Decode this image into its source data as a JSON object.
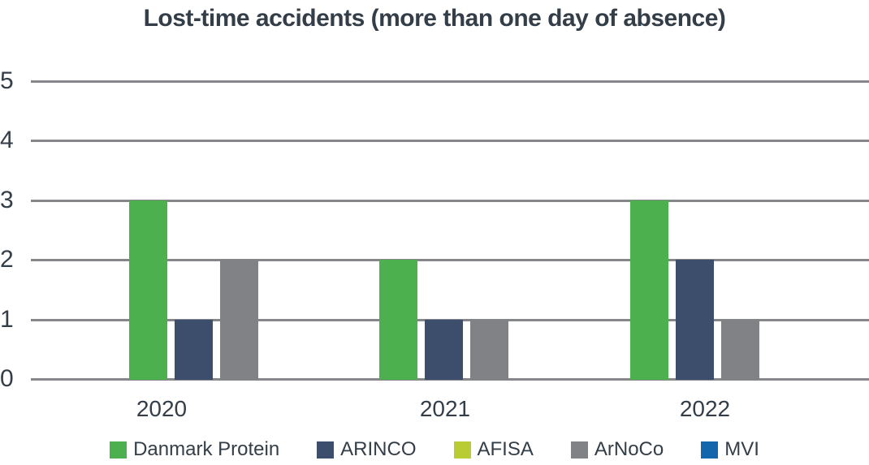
{
  "title": "Lost-time accidents (more than one day of absence)",
  "chart_data": {
    "type": "bar",
    "title": "Lost-time accidents (more than one day of absence)",
    "categories": [
      "2020",
      "2021",
      "2022"
    ],
    "series": [
      {
        "name": "Danmark Protein",
        "color": "#4cb04e",
        "values": [
          3,
          2,
          3
        ]
      },
      {
        "name": "ARINCO",
        "color": "#3c4e6b",
        "values": [
          1,
          1,
          2
        ]
      },
      {
        "name": "AFISA",
        "color": "#b9cc33",
        "values": [
          0,
          0,
          0
        ]
      },
      {
        "name": "ArNoCo",
        "color": "#808285",
        "values": [
          2,
          1,
          1
        ]
      },
      {
        "name": "MVI",
        "color": "#1466ac",
        "values": [
          0,
          0,
          0
        ]
      }
    ],
    "ylim": [
      0,
      5
    ],
    "yticks": [
      0,
      1,
      2,
      3,
      4,
      5
    ],
    "grid": "horizontal-only",
    "gridline_color": "#85878a",
    "text_color": "#333e48",
    "legend_position": "bottom",
    "zero_value_bars_hidden": true
  }
}
